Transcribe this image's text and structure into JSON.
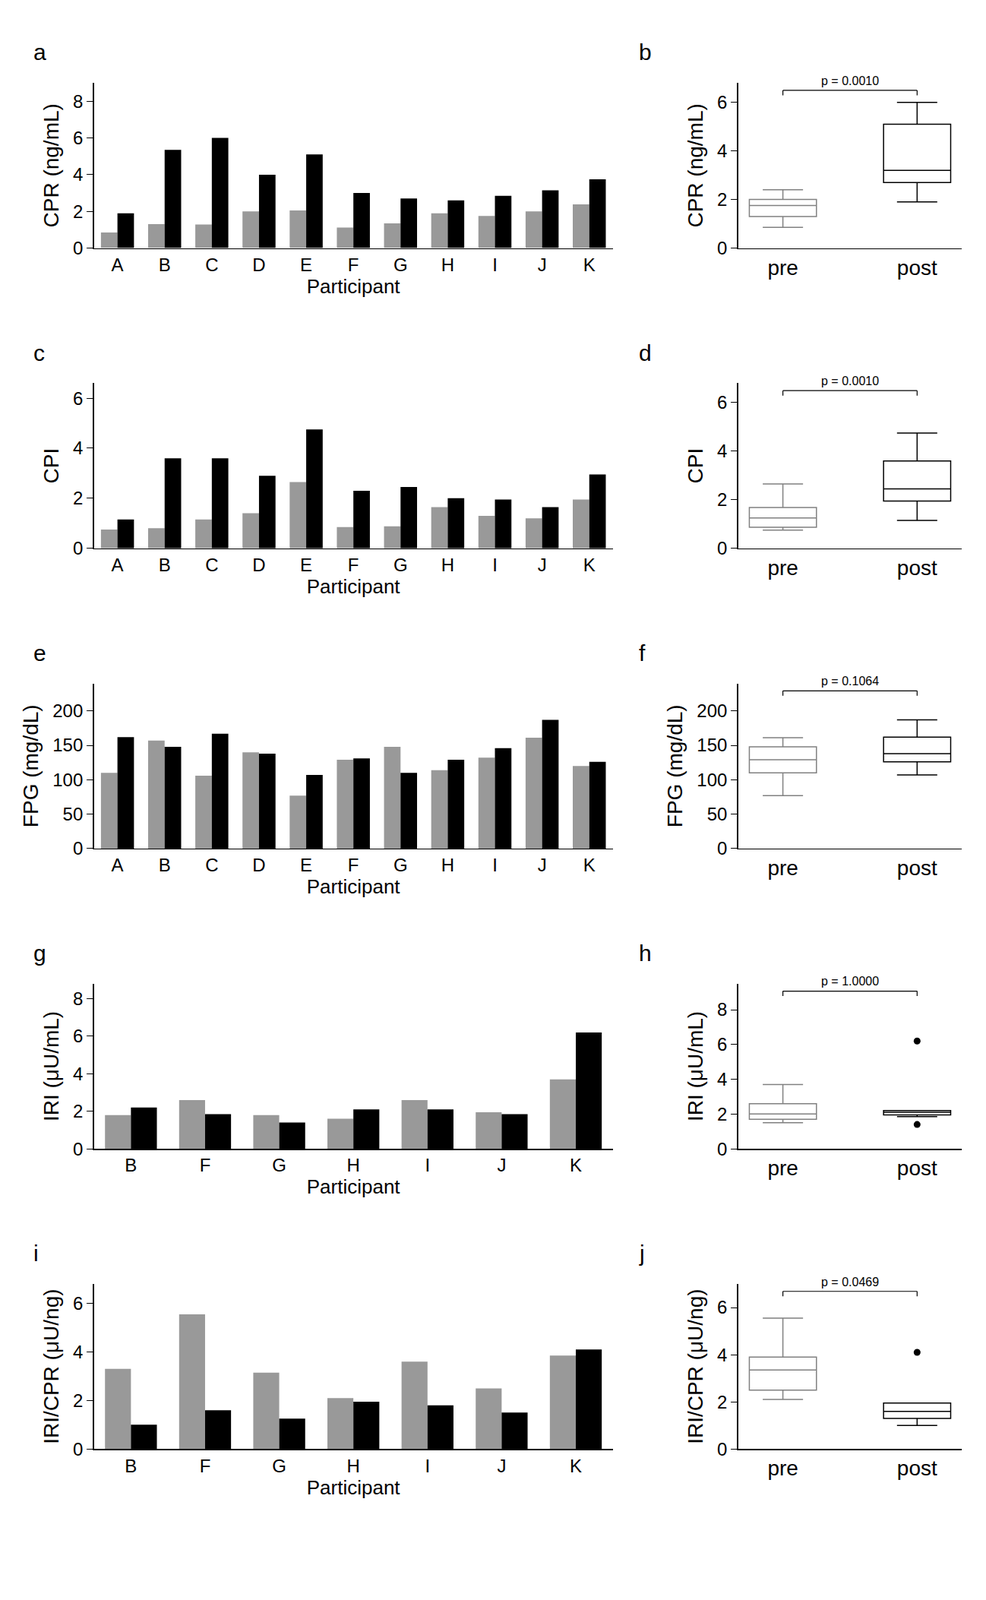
{
  "chart_data": [
    {
      "type": "bar",
      "title": "a",
      "x_label": "Participant",
      "y_label": "CPR (ng/mL)",
      "categories": [
        "A",
        "B",
        "C",
        "D",
        "E",
        "F",
        "G",
        "H",
        "I",
        "J",
        "K"
      ],
      "series": [
        {
          "color": "#999999",
          "values": [
            0.85,
            1.3,
            1.28,
            2.0,
            2.05,
            1.12,
            1.35,
            1.9,
            1.75,
            2.0,
            2.38
          ]
        },
        {
          "color": "#000000",
          "values": [
            1.9,
            5.35,
            6.0,
            4.0,
            5.1,
            3.0,
            2.7,
            2.6,
            2.85,
            3.15,
            3.75
          ]
        }
      ],
      "ylim": [
        0,
        9
      ],
      "yticks": [
        0,
        2,
        4,
        6,
        8
      ],
      "grid": false
    },
    {
      "type": "box",
      "title": "b",
      "y_label": "CPR (ng/mL)",
      "categories": [
        "pre",
        "post"
      ],
      "colors": [
        "#808080",
        "#000000"
      ],
      "boxes": [
        {
          "min": 0.85,
          "q1": 1.3,
          "median": 1.75,
          "q3": 2.0,
          "max": 2.4,
          "outliers": []
        },
        {
          "min": 1.9,
          "q1": 2.7,
          "median": 3.2,
          "q3": 5.1,
          "max": 6.0,
          "outliers": []
        }
      ],
      "annotations": [
        {
          "text": "p = 0.0010"
        }
      ],
      "ylim": [
        0,
        6.8
      ],
      "yticks": [
        0,
        2,
        4,
        6
      ],
      "grid": false
    },
    {
      "type": "bar",
      "title": "c",
      "x_label": "Participant",
      "y_label": "CPI",
      "categories": [
        "A",
        "B",
        "C",
        "D",
        "E",
        "F",
        "G",
        "H",
        "I",
        "J",
        "K"
      ],
      "series": [
        {
          "color": "#999999",
          "values": [
            0.75,
            0.8,
            1.15,
            1.4,
            2.65,
            0.85,
            0.88,
            1.65,
            1.3,
            1.2,
            1.95
          ]
        },
        {
          "color": "#000000",
          "values": [
            1.15,
            3.6,
            3.6,
            2.9,
            4.75,
            2.3,
            2.45,
            2.0,
            1.95,
            1.65,
            2.95
          ]
        }
      ],
      "ylim": [
        0,
        6.6
      ],
      "yticks": [
        0,
        2,
        4,
        6
      ],
      "grid": false
    },
    {
      "type": "box",
      "title": "d",
      "y_label": "CPI",
      "categories": [
        "pre",
        "post"
      ],
      "colors": [
        "#808080",
        "#000000"
      ],
      "boxes": [
        {
          "min": 0.75,
          "q1": 0.87,
          "median": 1.25,
          "q3": 1.68,
          "max": 2.65,
          "outliers": []
        },
        {
          "min": 1.15,
          "q1": 1.95,
          "median": 2.45,
          "q3": 3.6,
          "max": 4.75,
          "outliers": []
        }
      ],
      "annotations": [
        {
          "text": "p = 0.0010"
        }
      ],
      "ylim": [
        0,
        6.8
      ],
      "yticks": [
        0,
        2,
        4,
        6
      ],
      "grid": false
    },
    {
      "type": "bar",
      "title": "e",
      "x_label": "Participant",
      "y_label": "FPG (mg/dL)",
      "categories": [
        "A",
        "B",
        "C",
        "D",
        "E",
        "F",
        "G",
        "H",
        "I",
        "J",
        "K"
      ],
      "series": [
        {
          "color": "#999999",
          "values": [
            110,
            157,
            106,
            140,
            77,
            129,
            148,
            114,
            132,
            161,
            120
          ]
        },
        {
          "color": "#000000",
          "values": [
            162,
            148,
            167,
            138,
            107,
            131,
            110,
            129,
            146,
            187,
            126
          ]
        }
      ],
      "ylim": [
        0,
        240
      ],
      "yticks": [
        0,
        50,
        100,
        150,
        200
      ],
      "grid": false
    },
    {
      "type": "box",
      "title": "f",
      "y_label": "FPG (mg/dL)",
      "categories": [
        "pre",
        "post"
      ],
      "colors": [
        "#808080",
        "#000000"
      ],
      "boxes": [
        {
          "min": 77,
          "q1": 110,
          "median": 129,
          "q3": 148,
          "max": 161,
          "outliers": []
        },
        {
          "min": 107,
          "q1": 126,
          "median": 138,
          "q3": 162,
          "max": 187,
          "outliers": []
        }
      ],
      "annotations": [
        {
          "text": "p = 0.1064"
        }
      ],
      "ylim": [
        0,
        240
      ],
      "yticks": [
        0,
        50,
        100,
        150,
        200
      ],
      "grid": false
    },
    {
      "type": "bar",
      "title": "g",
      "x_label": "Participant",
      "y_label": "IRI (μU/mL)",
      "categories": [
        "B",
        "F",
        "G",
        "H",
        "I",
        "J",
        "K"
      ],
      "series": [
        {
          "color": "#999999",
          "values": [
            1.8,
            2.6,
            1.8,
            1.6,
            2.6,
            1.95,
            3.7
          ]
        },
        {
          "color": "#000000",
          "values": [
            2.2,
            1.85,
            1.4,
            2.1,
            2.1,
            1.85,
            6.2
          ]
        }
      ],
      "ylim": [
        0,
        8.8
      ],
      "yticks": [
        0,
        2,
        4,
        6,
        8
      ],
      "grid": false
    },
    {
      "type": "box",
      "title": "h",
      "y_label": "IRI (μU/mL)",
      "categories": [
        "pre",
        "post"
      ],
      "colors": [
        "#808080",
        "#000000"
      ],
      "boxes": [
        {
          "min": 1.5,
          "q1": 1.7,
          "median": 2.0,
          "q3": 2.6,
          "max": 3.7,
          "outliers": []
        },
        {
          "min": 1.85,
          "q1": 1.95,
          "median": 2.1,
          "q3": 2.2,
          "max": 2.2,
          "outliers": [
            6.2,
            1.4
          ]
        }
      ],
      "annotations": [
        {
          "text": "p = 1.0000"
        }
      ],
      "ylim": [
        0,
        9.5
      ],
      "yticks": [
        0,
        2,
        4,
        6,
        8
      ],
      "grid": false
    },
    {
      "type": "bar",
      "title": "i",
      "x_label": "Participant",
      "y_label": "IRI/CPR (μU/ng)",
      "categories": [
        "B",
        "F",
        "G",
        "H",
        "I",
        "J",
        "K"
      ],
      "series": [
        {
          "color": "#999999",
          "values": [
            3.3,
            5.55,
            3.15,
            2.1,
            3.6,
            2.5,
            3.85
          ]
        },
        {
          "color": "#000000",
          "values": [
            1.0,
            1.6,
            1.25,
            1.95,
            1.8,
            1.5,
            4.1
          ]
        }
      ],
      "ylim": [
        0,
        6.8
      ],
      "yticks": [
        0,
        2,
        4,
        6
      ],
      "grid": false
    },
    {
      "type": "box",
      "title": "j",
      "y_label": "IRI/CPR (μU/ng)",
      "categories": [
        "pre",
        "post"
      ],
      "colors": [
        "#808080",
        "#000000"
      ],
      "boxes": [
        {
          "min": 2.1,
          "q1": 2.5,
          "median": 3.35,
          "q3": 3.9,
          "max": 5.55,
          "outliers": []
        },
        {
          "min": 1.0,
          "q1": 1.3,
          "median": 1.6,
          "q3": 1.95,
          "max": 1.95,
          "outliers": [
            4.1
          ]
        }
      ],
      "annotations": [
        {
          "text": "p = 0.0469"
        }
      ],
      "ylim": [
        0,
        7
      ],
      "yticks": [
        0,
        2,
        4,
        6
      ],
      "grid": false
    }
  ]
}
